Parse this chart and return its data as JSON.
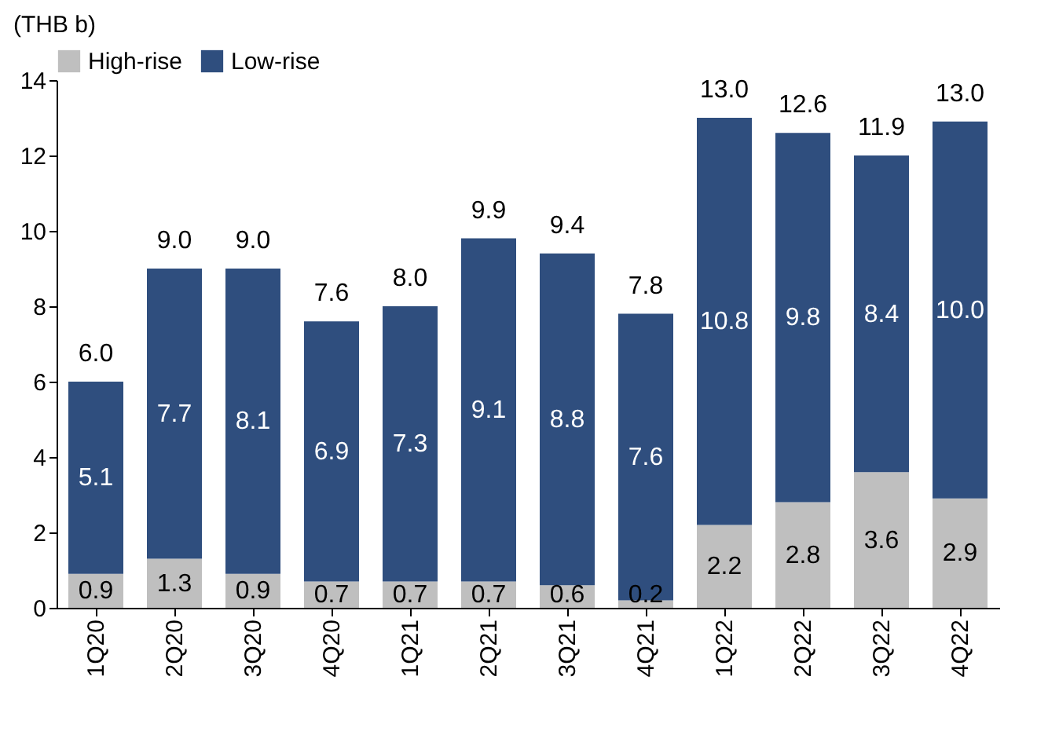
{
  "chart_data": {
    "type": "bar",
    "stacked": true,
    "ylabel": "(THB b)",
    "categories": [
      "1Q20",
      "2Q20",
      "3Q20",
      "4Q20",
      "1Q21",
      "2Q21",
      "3Q21",
      "4Q21",
      "1Q22",
      "2Q22",
      "3Q22",
      "4Q22"
    ],
    "series": [
      {
        "name": "High-rise",
        "color": "#bfbfbf",
        "values": [
          0.9,
          1.3,
          0.9,
          0.7,
          0.7,
          0.7,
          0.6,
          0.2,
          2.2,
          2.8,
          3.6,
          2.9
        ],
        "value_labels": [
          "0.9",
          "1.3",
          "0.9",
          "0.7",
          "0.7",
          "0.7",
          "0.6",
          "0.2",
          "2.2",
          "2.8",
          "3.6",
          "2.9"
        ]
      },
      {
        "name": "Low-rise",
        "color": "#2f4e7e",
        "values": [
          5.1,
          7.7,
          8.1,
          6.9,
          7.3,
          9.1,
          8.8,
          7.6,
          10.8,
          9.8,
          8.4,
          10.0
        ],
        "value_labels": [
          "5.1",
          "7.7",
          "8.1",
          "6.9",
          "7.3",
          "9.1",
          "8.8",
          "7.6",
          "10.8",
          "9.8",
          "8.4",
          "10.0"
        ]
      }
    ],
    "totals": [
      "6.0",
      "9.0",
      "9.0",
      "7.6",
      "8.0",
      "9.9",
      "9.4",
      "7.8",
      "13.0",
      "12.6",
      "11.9",
      "13.0"
    ],
    "ylim": [
      0,
      14
    ],
    "yticks": [
      0,
      2,
      4,
      6,
      8,
      10,
      12,
      14
    ],
    "grid": false,
    "legend": "top"
  }
}
